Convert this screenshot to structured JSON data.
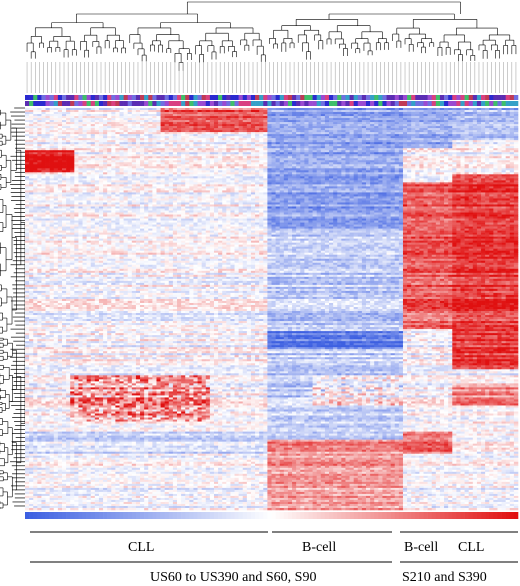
{
  "chart_data": {
    "type": "heatmap",
    "title": "",
    "xlabel": "",
    "ylabel": "",
    "color_scale": {
      "low": "#1f3fd6",
      "mid": "#ffffff",
      "high": "#e01010"
    },
    "sample_groups": [
      {
        "label": "CLL",
        "condition": "US60 to US390 and S60, S90"
      },
      {
        "label": "B-cell",
        "condition": "US60 to US390 and S60, S90"
      },
      {
        "label": "B-cell",
        "condition": "S210 and S390"
      },
      {
        "label": "CLL",
        "condition": "S210 and S390"
      }
    ],
    "condition_labels": [
      "US60 to US390 and S60, S90",
      "S210 and S390"
    ],
    "column_annotation_colors": [
      "#5b2db3",
      "#d94080",
      "#2a2ad0",
      "#9a4bd1",
      "#35a0c8",
      "#c03a55",
      "#7070e0",
      "#3fbf6a"
    ],
    "dendrogram": "hierarchical clustering of rows and columns"
  },
  "labels": {
    "g1": "CLL",
    "g2": "B-cell",
    "g3": "B-cell",
    "g4": "CLL",
    "c1": "US60 to US390 and S60, S90",
    "c2": "S210 and S390"
  }
}
